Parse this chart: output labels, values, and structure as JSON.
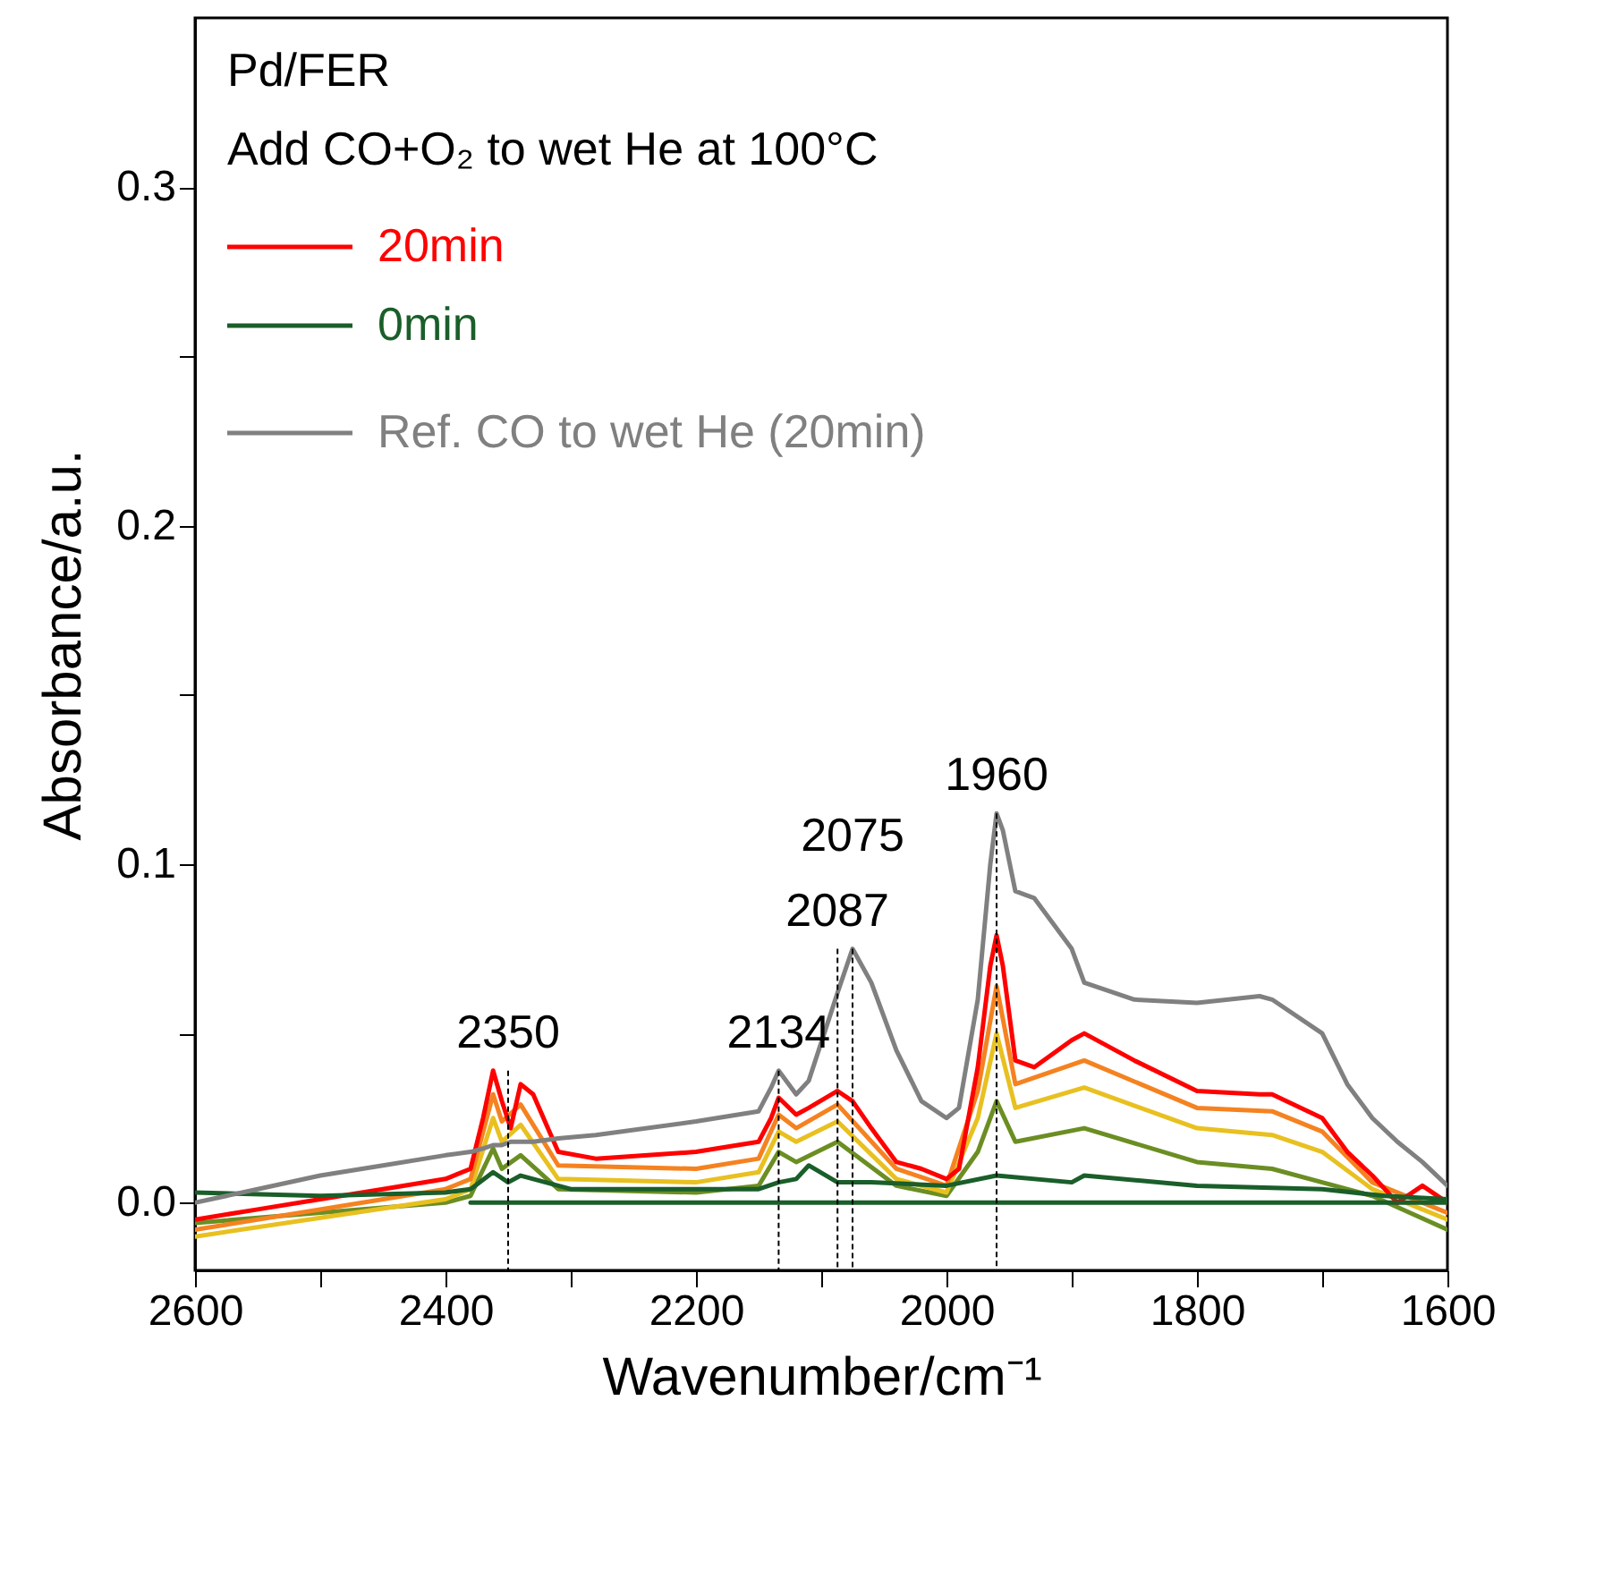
{
  "chart_data": {
    "type": "line",
    "title": "Pd/FER",
    "subtitle": "Add CO+O₂ to wet He at 100°C",
    "xlabel": "Wavenumber/cm⁻¹",
    "ylabel": "Absorbance/a.u.",
    "xlim": [
      2600,
      1600
    ],
    "ylim": [
      -0.02,
      0.35
    ],
    "xticks": [
      2600,
      {
        "value": 2500,
        "label": null
      },
      2400,
      {
        "value": 2300,
        "label": null
      },
      2200,
      {
        "value": 2100,
        "label": null
      },
      2000,
      {
        "value": 1900,
        "label": null
      },
      1800,
      {
        "value": 1700,
        "label": null
      },
      1600
    ],
    "yticks": [
      {
        "value": 0,
        "label": "0.0"
      },
      {
        "value": 0.05,
        "label": null
      },
      0.1,
      {
        "value": 0.15,
        "label": null
      },
      0.2,
      {
        "value": 0.25,
        "label": null
      },
      0.3
    ],
    "grid": false,
    "legend": "top left",
    "series": [
      {
        "color": "#6b8e23",
        "x": [
          2600,
          2400,
          2380,
          2362,
          2355,
          2340,
          2310,
          2200,
          2150,
          2134,
          2120,
          2087,
          2040,
          2000,
          1975,
          1960,
          1945,
          1890,
          1800,
          1740,
          1700,
          1660,
          1600
        ],
        "values": [
          -0.006,
          0.0,
          0.002,
          0.016,
          0.01,
          0.014,
          0.004,
          0.003,
          0.005,
          0.015,
          0.012,
          0.018,
          0.005,
          0.002,
          0.015,
          0.03,
          0.018,
          0.022,
          0.012,
          0.01,
          0.006,
          0.002,
          -0.008
        ]
      },
      {
        "color": "#e8c020",
        "x": [
          2600,
          2400,
          2380,
          2362,
          2355,
          2340,
          2310,
          2200,
          2150,
          2134,
          2120,
          2087,
          2040,
          2000,
          1975,
          1960,
          1945,
          1890,
          1800,
          1740,
          1700,
          1660,
          1600
        ],
        "values": [
          -0.01,
          0.001,
          0.004,
          0.025,
          0.018,
          0.023,
          0.007,
          0.006,
          0.009,
          0.021,
          0.018,
          0.024,
          0.007,
          0.003,
          0.025,
          0.05,
          0.028,
          0.034,
          0.022,
          0.02,
          0.015,
          0.004,
          -0.005
        ]
      },
      {
        "color": "#f58220",
        "x": [
          2600,
          2400,
          2380,
          2362,
          2355,
          2340,
          2310,
          2200,
          2150,
          2134,
          2120,
          2087,
          2040,
          2000,
          1975,
          1960,
          1945,
          1890,
          1800,
          1740,
          1700,
          1660,
          1600
        ],
        "values": [
          -0.008,
          0.004,
          0.007,
          0.032,
          0.024,
          0.029,
          0.011,
          0.01,
          0.013,
          0.026,
          0.022,
          0.029,
          0.01,
          0.005,
          0.033,
          0.064,
          0.035,
          0.042,
          0.028,
          0.027,
          0.021,
          0.006,
          -0.003
        ]
      },
      {
        "name": "20min",
        "color": "#ff0000",
        "x": [
          2600,
          2550,
          2500,
          2450,
          2400,
          2380,
          2370,
          2362,
          2355,
          2348,
          2340,
          2330,
          2310,
          2280,
          2200,
          2150,
          2140,
          2134,
          2120,
          2110,
          2087,
          2075,
          2060,
          2040,
          2020,
          2000,
          1990,
          1975,
          1965,
          1960,
          1955,
          1945,
          1930,
          1900,
          1890,
          1850,
          1800,
          1750,
          1740,
          1700,
          1680,
          1660,
          1640,
          1620,
          1600
        ],
        "values": [
          -0.005,
          -0.002,
          0.001,
          0.004,
          0.007,
          0.01,
          0.025,
          0.039,
          0.03,
          0.022,
          0.035,
          0.032,
          0.015,
          0.013,
          0.015,
          0.018,
          0.025,
          0.031,
          0.026,
          0.028,
          0.033,
          0.03,
          0.022,
          0.012,
          0.01,
          0.007,
          0.01,
          0.04,
          0.07,
          0.079,
          0.07,
          0.042,
          0.04,
          0.048,
          0.05,
          0.042,
          0.033,
          0.032,
          0.032,
          0.025,
          0.015,
          0.008,
          0.0,
          0.005,
          0.0
        ]
      },
      {
        "color": "#1a5e2a",
        "x": [
          2380,
          1600
        ],
        "values": [
          0,
          0
        ]
      },
      {
        "name": "0min",
        "color": "#1a5e2a",
        "x": [
          2600,
          2500,
          2400,
          2380,
          2362,
          2350,
          2340,
          2320,
          2300,
          2200,
          2150,
          2134,
          2120,
          2110,
          2087,
          2060,
          2000,
          1960,
          1900,
          1890,
          1800,
          1700,
          1650,
          1600
        ],
        "values": [
          0.003,
          0.002,
          0.003,
          0.004,
          0.009,
          0.006,
          0.008,
          0.006,
          0.004,
          0.004,
          0.004,
          0.006,
          0.007,
          0.011,
          0.006,
          0.006,
          0.005,
          0.008,
          0.006,
          0.008,
          0.005,
          0.004,
          0.002,
          0.001
        ]
      },
      {
        "name": "Ref. CO to wet He (20min)",
        "color": "#808080",
        "x": [
          2600,
          2550,
          2500,
          2450,
          2400,
          2380,
          2370,
          2362,
          2355,
          2348,
          2340,
          2330,
          2310,
          2280,
          2200,
          2150,
          2140,
          2134,
          2120,
          2110,
          2087,
          2075,
          2060,
          2040,
          2020,
          2000,
          1990,
          1975,
          1965,
          1960,
          1955,
          1945,
          1930,
          1900,
          1890,
          1850,
          1800,
          1750,
          1740,
          1700,
          1680,
          1660,
          1640,
          1620,
          1600
        ],
        "values": [
          0.0,
          0.004,
          0.008,
          0.011,
          0.014,
          0.015,
          0.016,
          0.017,
          0.017,
          0.018,
          0.018,
          0.018,
          0.019,
          0.02,
          0.024,
          0.027,
          0.034,
          0.039,
          0.032,
          0.036,
          0.062,
          0.075,
          0.065,
          0.045,
          0.03,
          0.025,
          0.028,
          0.06,
          0.1,
          0.115,
          0.11,
          0.092,
          0.09,
          0.075,
          0.065,
          0.06,
          0.059,
          0.061,
          0.06,
          0.05,
          0.035,
          0.025,
          0.018,
          0.012,
          0.005
        ]
      }
    ],
    "annotations": [
      {
        "text": "2350",
        "x": 2350,
        "y": 0.006
      },
      {
        "text": "2134",
        "x": 2134,
        "y": 0.039
      },
      {
        "text": "2087",
        "x": 2087,
        "y": 0.062
      },
      {
        "text": "2075",
        "x": 2075,
        "y": 0.075
      },
      {
        "text": "1960",
        "x": 1960,
        "y": 0.115
      }
    ]
  }
}
